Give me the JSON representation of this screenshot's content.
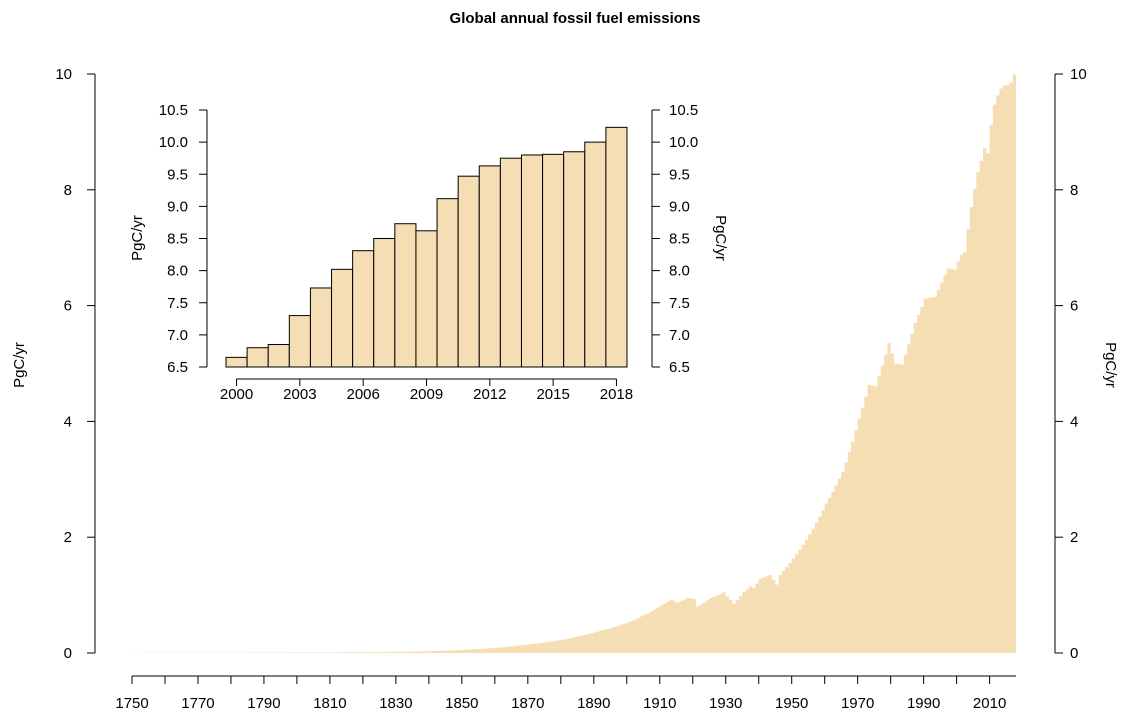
{
  "colors": {
    "fill": "#f5deb3",
    "stroke": "#000000",
    "background": "#ffffff"
  },
  "chart_data": [
    {
      "type": "area",
      "title": "Global annual fossil fuel emissions",
      "xlabel": "",
      "ylabel": "PgC/yr",
      "ylabel_right": "PgC/yr",
      "xlim": [
        1750,
        2018
      ],
      "ylim": [
        0,
        10
      ],
      "x_ticks": [
        1750,
        1770,
        1790,
        1810,
        1830,
        1850,
        1870,
        1890,
        1910,
        1930,
        1950,
        1970,
        1990,
        2010
      ],
      "y_ticks": [
        0,
        2,
        4,
        6,
        8,
        10
      ],
      "step": true,
      "grid": false,
      "anchors": [
        [
          1750,
          0.003
        ],
        [
          1780,
          0.005
        ],
        [
          1800,
          0.008
        ],
        [
          1820,
          0.014
        ],
        [
          1830,
          0.02
        ],
        [
          1840,
          0.03
        ],
        [
          1850,
          0.054
        ],
        [
          1860,
          0.09
        ],
        [
          1870,
          0.15
        ],
        [
          1880,
          0.23
        ],
        [
          1890,
          0.36
        ],
        [
          1900,
          0.53
        ],
        [
          1905,
          0.66
        ],
        [
          1910,
          0.82
        ],
        [
          1913,
          0.92
        ],
        [
          1915,
          0.87
        ],
        [
          1918,
          0.95
        ],
        [
          1920,
          0.93
        ],
        [
          1921,
          0.8
        ],
        [
          1925,
          0.95
        ],
        [
          1929,
          1.05
        ],
        [
          1930,
          0.98
        ],
        [
          1932,
          0.85
        ],
        [
          1935,
          1.05
        ],
        [
          1937,
          1.15
        ],
        [
          1938,
          1.12
        ],
        [
          1940,
          1.28
        ],
        [
          1943,
          1.35
        ],
        [
          1945,
          1.18
        ],
        [
          1946,
          1.35
        ],
        [
          1950,
          1.63
        ],
        [
          1955,
          2.05
        ],
        [
          1960,
          2.58
        ],
        [
          1965,
          3.13
        ],
        [
          1970,
          4.05
        ],
        [
          1973,
          4.63
        ],
        [
          1975,
          4.6
        ],
        [
          1979,
          5.35
        ],
        [
          1981,
          5.0
        ],
        [
          1983,
          4.98
        ],
        [
          1987,
          5.7
        ],
        [
          1990,
          6.12
        ],
        [
          1993,
          6.15
        ],
        [
          1995,
          6.4
        ],
        [
          1997,
          6.65
        ],
        [
          1999,
          6.62
        ],
        [
          2000,
          6.76
        ],
        [
          2001,
          6.88
        ],
        [
          2002,
          6.92
        ],
        [
          2003,
          7.32
        ],
        [
          2004,
          7.7
        ],
        [
          2005,
          8.02
        ],
        [
          2006,
          8.3
        ],
        [
          2007,
          8.5
        ],
        [
          2008,
          8.72
        ],
        [
          2009,
          8.63
        ],
        [
          2010,
          9.12
        ],
        [
          2011,
          9.47
        ],
        [
          2012,
          9.63
        ],
        [
          2013,
          9.75
        ],
        [
          2014,
          9.8
        ],
        [
          2015,
          9.81
        ],
        [
          2016,
          9.85
        ],
        [
          2017,
          9.99
        ],
        [
          2018,
          10.21
        ]
      ]
    },
    {
      "type": "bar",
      "title": "",
      "ylabel": "PgC/yr",
      "ylabel_right": "PgC/yr",
      "categories": [
        2000,
        2001,
        2002,
        2003,
        2004,
        2005,
        2006,
        2007,
        2008,
        2009,
        2010,
        2011,
        2012,
        2013,
        2014,
        2015,
        2016,
        2017,
        2018
      ],
      "values": [
        6.65,
        6.8,
        6.85,
        7.3,
        7.73,
        8.02,
        8.31,
        8.5,
        8.73,
        8.62,
        9.12,
        9.47,
        9.63,
        9.75,
        9.8,
        9.81,
        9.85,
        10.0,
        10.23
      ],
      "ylim": [
        6.5,
        10.5
      ],
      "x_ticks": [
        2000,
        2003,
        2006,
        2009,
        2012,
        2015,
        2018
      ],
      "y_ticks": [
        6.5,
        7.0,
        7.5,
        8.0,
        8.5,
        9.0,
        9.5,
        10.0,
        10.5
      ],
      "grid": false
    }
  ]
}
